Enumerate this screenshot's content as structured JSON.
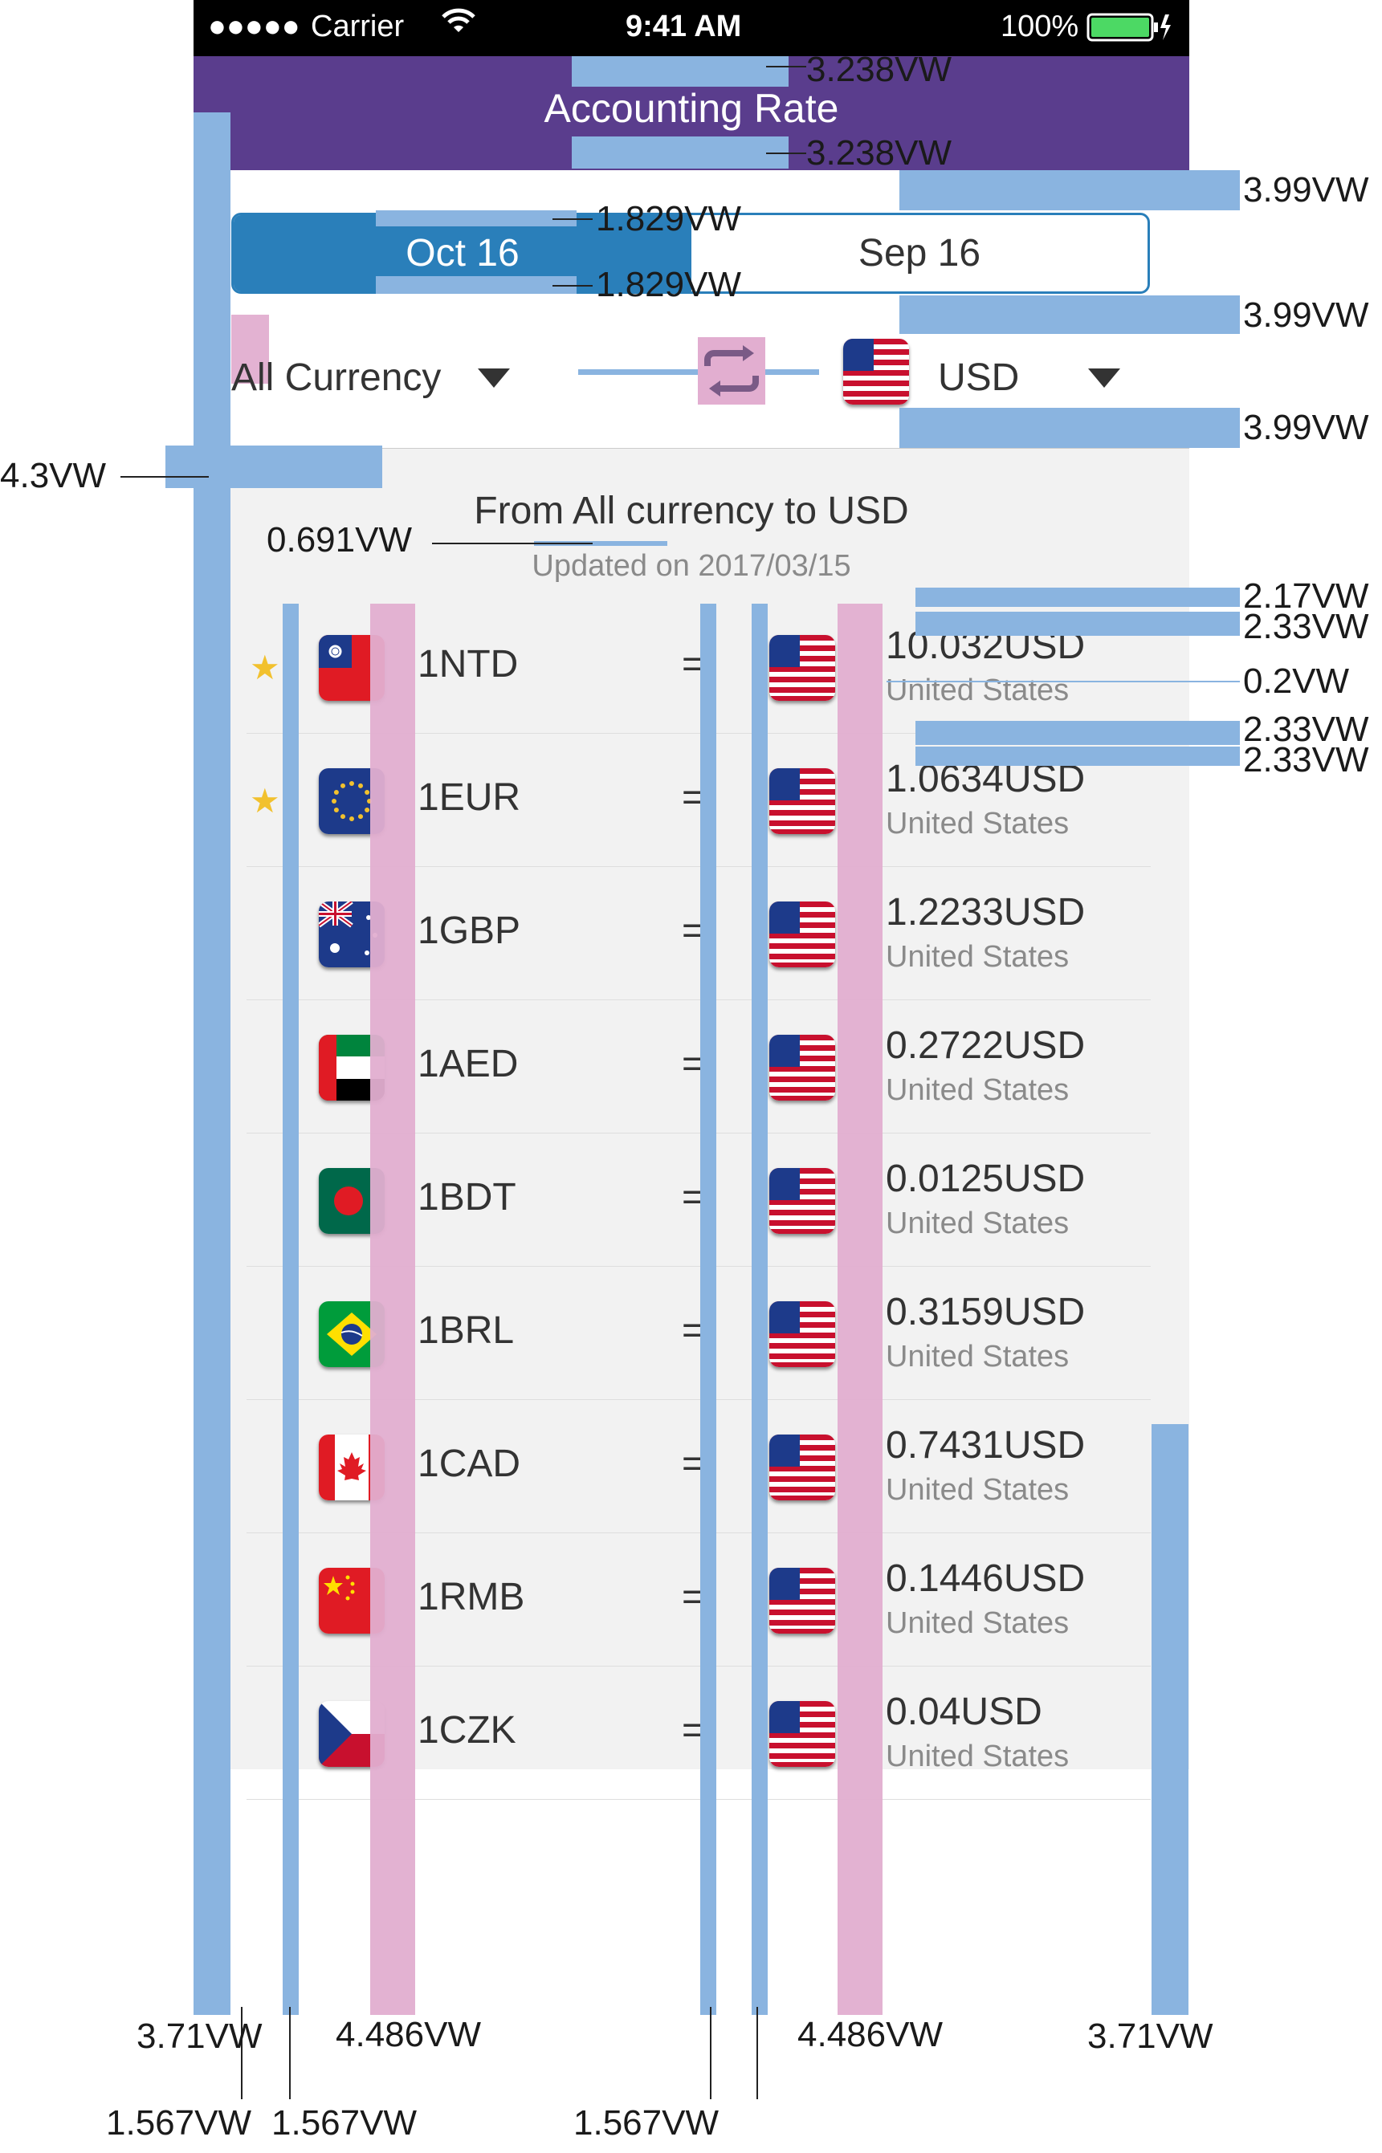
{
  "status_bar": {
    "signal": "●●●●●",
    "carrier": "Carrier",
    "time": "9:41 AM",
    "battery": "100%"
  },
  "nav": {
    "title": "Accounting Rate"
  },
  "segmented": {
    "left": "Oct 16",
    "right": "Sep 16",
    "active": "left"
  },
  "selector": {
    "from": "All Currency",
    "to": "USD",
    "swap_icon": "swap-arrows-icon"
  },
  "list_header": {
    "title": "From All currency to USD",
    "updated": "Updated on 2017/03/15"
  },
  "rows": [
    {
      "starred": true,
      "flag": "taiwan",
      "code": "1NTD",
      "eq": "=",
      "value": "10.032USD",
      "country": "United States"
    },
    {
      "starred": true,
      "flag": "eu",
      "code": "1EUR",
      "eq": "=",
      "value": "1.0634USD",
      "country": "United States"
    },
    {
      "starred": false,
      "flag": "australia",
      "code": "1GBP",
      "eq": "=",
      "value": "1.2233USD",
      "country": "United States"
    },
    {
      "starred": false,
      "flag": "uae",
      "code": "1AED",
      "eq": "=",
      "value": "0.2722USD",
      "country": "United States"
    },
    {
      "starred": false,
      "flag": "bangladesh",
      "code": "1BDT",
      "eq": "=",
      "value": "0.0125USD",
      "country": "United States"
    },
    {
      "starred": false,
      "flag": "brazil",
      "code": "1BRL",
      "eq": "=",
      "value": "0.3159USD",
      "country": "United States"
    },
    {
      "starred": false,
      "flag": "canada",
      "code": "1CAD",
      "eq": "=",
      "value": "0.7431USD",
      "country": "United States"
    },
    {
      "starred": false,
      "flag": "china",
      "code": "1RMB",
      "eq": "=",
      "value": "0.1446USD",
      "country": "United States"
    },
    {
      "starred": false,
      "flag": "czech",
      "code": "1CZK",
      "eq": "=",
      "value": "0.04USD",
      "country": "United States"
    }
  ],
  "annotations": {
    "nav_top": "3.238VW",
    "nav_bottom": "3.238VW",
    "seg_top": "1.829VW",
    "seg_bottom": "1.829VW",
    "right_1": "3.99VW",
    "right_2": "3.99VW",
    "right_3": "3.99VW",
    "left_margin": "4.3VW",
    "title_gap": "0.691VW",
    "row_a": "2.17VW",
    "row_b": "2.33VW",
    "row_sep": "0.2VW",
    "row_c": "2.33VW",
    "row_d": "2.33VW",
    "bottom_1": "3.71VW",
    "bottom_2": "4.486VW",
    "bottom_3": "4.486VW",
    "bottom_4": "3.71VW",
    "bottom_5": "1.567VW",
    "bottom_6": "1.567VW",
    "bottom_7": "1.567VW"
  },
  "colors": {
    "nav": "#5a3d8d",
    "accent": "#2a7fba",
    "panel": "#f2f2f2",
    "overlay_blue": "#8ab4e0",
    "overlay_pink": "#e2aed0",
    "star": "#f2c12e"
  }
}
